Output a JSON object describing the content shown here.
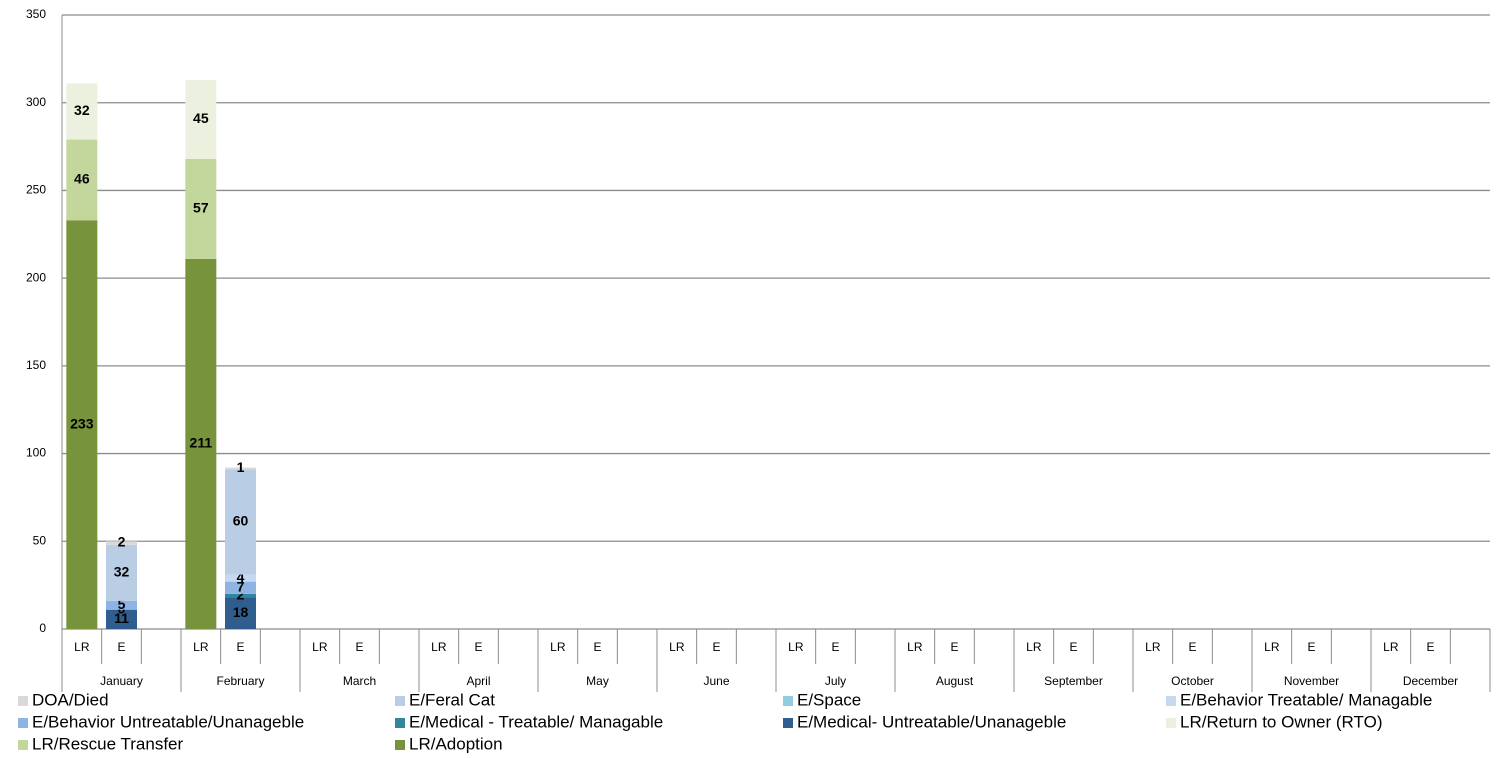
{
  "chart_data": {
    "type": "bar",
    "stacked": true,
    "groups": [
      "January",
      "February",
      "March",
      "April",
      "May",
      "June",
      "July",
      "August",
      "September",
      "October",
      "November",
      "December"
    ],
    "categories": [
      "LR",
      "E",
      null,
      "LR",
      "E",
      null,
      "LR",
      "E",
      null,
      "LR",
      "E",
      null,
      "LR",
      "E",
      null,
      "LR",
      "E",
      null,
      "LR",
      "E",
      null,
      "LR",
      "E",
      null,
      "LR",
      "E",
      null,
      "LR",
      "E",
      null,
      "LR",
      "E",
      null,
      "LR",
      "E",
      null
    ],
    "ylim": [
      0,
      350
    ],
    "yticks": [
      0,
      50,
      100,
      150,
      200,
      250,
      300,
      350
    ],
    "grid": true,
    "series": [
      {
        "name": "DOA/Died",
        "color": "#d9d9d9",
        "values": [
          null,
          2,
          null,
          null,
          1,
          null,
          null,
          null,
          null,
          null,
          null,
          null,
          null,
          null,
          null,
          null,
          null,
          null,
          null,
          null,
          null,
          null,
          null,
          null,
          null,
          null,
          null,
          null,
          null,
          null,
          null,
          null,
          null,
          null,
          null,
          null
        ]
      },
      {
        "name": "E/Feral Cat",
        "color": "#b9cde5",
        "values": [
          null,
          32,
          null,
          null,
          60,
          null,
          null,
          null,
          null,
          null,
          null,
          null,
          null,
          null,
          null,
          null,
          null,
          null,
          null,
          null,
          null,
          null,
          null,
          null,
          null,
          null,
          null,
          null,
          null,
          null,
          null,
          null,
          null,
          null,
          null,
          null
        ]
      },
      {
        "name": "E/Space",
        "color": "#93cddd",
        "values": [
          null,
          null,
          null,
          null,
          null,
          null,
          null,
          null,
          null,
          null,
          null,
          null,
          null,
          null,
          null,
          null,
          null,
          null,
          null,
          null,
          null,
          null,
          null,
          null,
          null,
          null,
          null,
          null,
          null,
          null,
          null,
          null,
          null,
          null,
          null,
          null
        ]
      },
      {
        "name": "E/Behavior Treatable/ Managable",
        "color": "#c6d9f1",
        "values": [
          null,
          null,
          null,
          null,
          4,
          null,
          null,
          null,
          null,
          null,
          null,
          null,
          null,
          null,
          null,
          null,
          null,
          null,
          null,
          null,
          null,
          null,
          null,
          null,
          null,
          null,
          null,
          null,
          null,
          null,
          null,
          null,
          null,
          null,
          null,
          null
        ]
      },
      {
        "name": "E/Behavior Untreatable/Unanageble",
        "color": "#8eb4e3",
        "values": [
          null,
          5,
          null,
          null,
          7,
          null,
          null,
          null,
          null,
          null,
          null,
          null,
          null,
          null,
          null,
          null,
          null,
          null,
          null,
          null,
          null,
          null,
          null,
          null,
          null,
          null,
          null,
          null,
          null,
          null,
          null,
          null,
          null,
          null,
          null,
          null
        ]
      },
      {
        "name": "E/Medical - Treatable/ Managable",
        "color": "#31859c",
        "values": [
          null,
          0,
          null,
          null,
          2,
          null,
          null,
          null,
          null,
          null,
          null,
          null,
          null,
          null,
          null,
          null,
          null,
          null,
          null,
          null,
          null,
          null,
          null,
          null,
          null,
          null,
          null,
          null,
          null,
          null,
          null,
          null,
          null,
          null,
          null,
          null
        ]
      },
      {
        "name": "E/Medical- Untreatable/Unanageble",
        "color": "#2f5e8e",
        "values": [
          null,
          11,
          null,
          null,
          18,
          null,
          null,
          null,
          null,
          null,
          null,
          null,
          null,
          null,
          null,
          null,
          null,
          null,
          null,
          null,
          null,
          null,
          null,
          null,
          null,
          null,
          null,
          null,
          null,
          null,
          null,
          null,
          null,
          null,
          null,
          null
        ]
      },
      {
        "name": "LR/Return to Owner (RTO)",
        "color": "#ebf1de",
        "values": [
          32,
          null,
          null,
          45,
          null,
          null,
          null,
          null,
          null,
          null,
          null,
          null,
          null,
          null,
          null,
          null,
          null,
          null,
          null,
          null,
          null,
          null,
          null,
          null,
          null,
          null,
          null,
          null,
          null,
          null,
          null,
          null,
          null,
          null,
          null,
          null
        ]
      },
      {
        "name": "LR/Rescue Transfer",
        "color": "#c3d69b",
        "values": [
          46,
          null,
          null,
          57,
          null,
          null,
          null,
          null,
          null,
          null,
          null,
          null,
          null,
          null,
          null,
          null,
          null,
          null,
          null,
          null,
          null,
          null,
          null,
          null,
          null,
          null,
          null,
          null,
          null,
          null,
          null,
          null,
          null,
          null,
          null,
          null
        ]
      },
      {
        "name": "LR/Adoption",
        "color": "#77933c",
        "values": [
          233,
          null,
          null,
          211,
          null,
          null,
          null,
          null,
          null,
          null,
          null,
          null,
          null,
          null,
          null,
          null,
          null,
          null,
          null,
          null,
          null,
          null,
          null,
          null,
          null,
          null,
          null,
          null,
          null,
          null,
          null,
          null,
          null,
          null,
          null,
          null
        ]
      }
    ]
  }
}
